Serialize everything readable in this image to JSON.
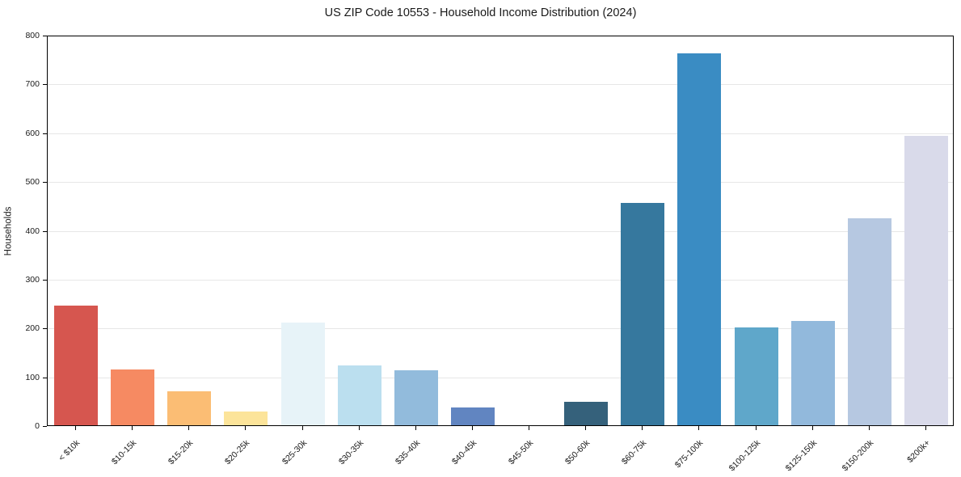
{
  "chart_data": {
    "type": "bar",
    "title": "US ZIP Code 10553 - Household Income Distribution (2024)",
    "xlabel": "",
    "ylabel": "Households",
    "ylim": [
      0,
      800
    ],
    "yticks": [
      0,
      100,
      200,
      300,
      400,
      500,
      600,
      700,
      800
    ],
    "grid": true,
    "legend": false,
    "categories": [
      "< $10k",
      "$10-15k",
      "$15-20k",
      "$20-25k",
      "$25-30k",
      "$30-35k",
      "$35-40k",
      "$40-45k",
      "$45-50k",
      "$50-60k",
      "$60-75k",
      "$75-100k",
      "$100-125k",
      "$125-150k",
      "$150-200k",
      "$200k+"
    ],
    "values": [
      245,
      115,
      70,
      28,
      210,
      123,
      112,
      36,
      0,
      48,
      455,
      762,
      201,
      213,
      424,
      593
    ],
    "bar_colors": [
      "#d6564f",
      "#f68a62",
      "#fbbd74",
      "#fce49a",
      "#e7f3f8",
      "#bbdfef",
      "#92bbdc",
      "#6185c1",
      "#4a6fae",
      "#35617b",
      "#36789e",
      "#3a8cc3",
      "#5fa7ca",
      "#92b9dc",
      "#b6c8e1",
      "#d9daea"
    ],
    "gridline_color": "#e7e7e7",
    "spine_color": "#000000",
    "text_color": "#1a1a1a"
  }
}
